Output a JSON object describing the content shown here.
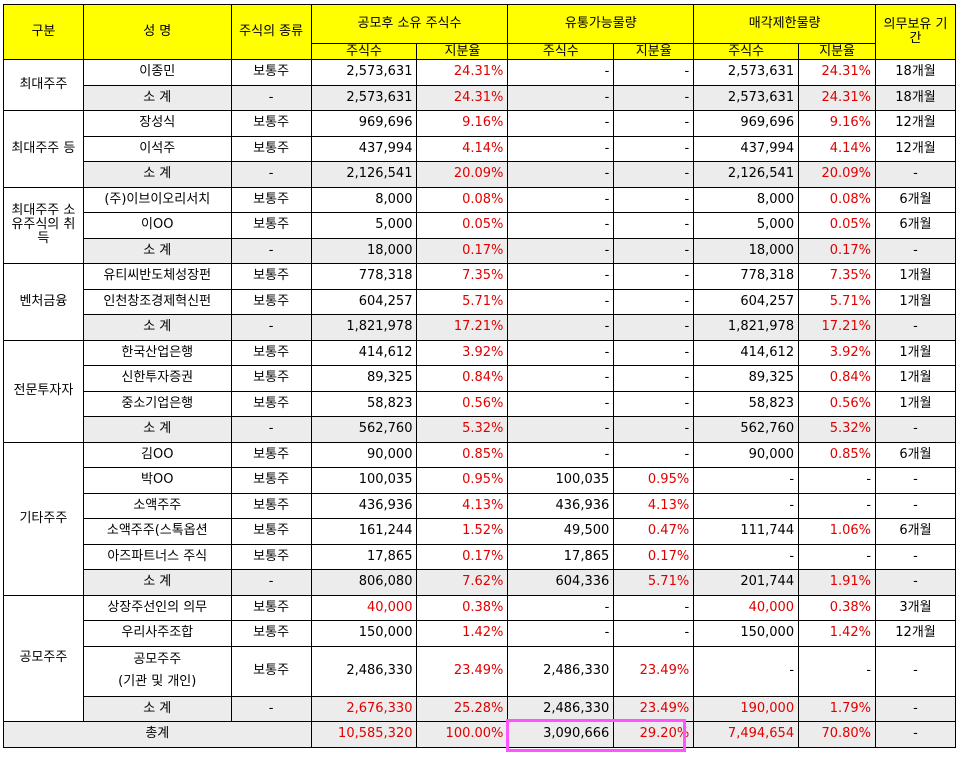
{
  "headers": {
    "gubun": "구분",
    "name": "성 명",
    "kind": "주식의 종류",
    "own": "공모후 소유 주식수",
    "flow": "유통가능물량",
    "lock": "매각제한물량",
    "duty": "의무보유 기간",
    "shares": "주식수",
    "ratio": "지분율"
  },
  "groups": [
    {
      "label": "최대주주",
      "rows": [
        {
          "name": "이종민",
          "kind": "보통주",
          "own": "2,573,631",
          "ownPct": "24.31%",
          "flow": "-",
          "flowPct": "-",
          "lock": "2,573,631",
          "lockPct": "24.31%",
          "period": "18개월"
        },
        {
          "name": "소 계",
          "kind": "-",
          "own": "2,573,631",
          "ownPct": "24.31%",
          "flow": "-",
          "flowPct": "-",
          "lock": "2,573,631",
          "lockPct": "24.31%",
          "period": "18개월",
          "sub": true
        }
      ]
    },
    {
      "label": "최대주주 등",
      "rows": [
        {
          "name": "장성식",
          "kind": "보통주",
          "own": "969,696",
          "ownPct": "9.16%",
          "flow": "-",
          "flowPct": "-",
          "lock": "969,696",
          "lockPct": "9.16%",
          "period": "12개월"
        },
        {
          "name": "이석주",
          "kind": "보통주",
          "own": "437,994",
          "ownPct": "4.14%",
          "flow": "-",
          "flowPct": "-",
          "lock": "437,994",
          "lockPct": "4.14%",
          "period": "12개월"
        },
        {
          "name": "소 계",
          "kind": "-",
          "own": "2,126,541",
          "ownPct": "20.09%",
          "flow": "-",
          "flowPct": "-",
          "lock": "2,126,541",
          "lockPct": "20.09%",
          "period": "-",
          "sub": true
        }
      ]
    },
    {
      "label": "최대주주 소유주식의 취득",
      "rows": [
        {
          "name": "(주)이브이오리서치",
          "kind": "보통주",
          "own": "8,000",
          "ownPct": "0.08%",
          "flow": "-",
          "flowPct": "-",
          "lock": "8,000",
          "lockPct": "0.08%",
          "period": "6개월"
        },
        {
          "name": "이OO",
          "kind": "보통주",
          "own": "5,000",
          "ownPct": "0.05%",
          "flow": "-",
          "flowPct": "-",
          "lock": "5,000",
          "lockPct": "0.05%",
          "period": "6개월"
        },
        {
          "name": "소 계",
          "kind": "-",
          "own": "18,000",
          "ownPct": "0.17%",
          "flow": "-",
          "flowPct": "-",
          "lock": "18,000",
          "lockPct": "0.17%",
          "period": "-",
          "sub": true
        }
      ]
    },
    {
      "label": "벤처금융",
      "rows": [
        {
          "name": "유티씨반도체성장펀",
          "kind": "보통주",
          "own": "778,318",
          "ownPct": "7.35%",
          "flow": "-",
          "flowPct": "-",
          "lock": "778,318",
          "lockPct": "7.35%",
          "period": "1개월"
        },
        {
          "name": "인천창조경제혁신펀",
          "kind": "보통주",
          "own": "604,257",
          "ownPct": "5.71%",
          "flow": "-",
          "flowPct": "-",
          "lock": "604,257",
          "lockPct": "5.71%",
          "period": "1개월"
        },
        {
          "name": "소 계",
          "kind": "-",
          "own": "1,821,978",
          "ownPct": "17.21%",
          "flow": "-",
          "flowPct": "-",
          "lock": "1,821,978",
          "lockPct": "17.21%",
          "period": "-",
          "sub": true
        }
      ]
    },
    {
      "label": "전문투자자",
      "rows": [
        {
          "name": "한국산업은행",
          "kind": "보통주",
          "own": "414,612",
          "ownPct": "3.92%",
          "flow": "-",
          "flowPct": "-",
          "lock": "414,612",
          "lockPct": "3.92%",
          "period": "1개월"
        },
        {
          "name": "신한투자증권",
          "kind": "보통주",
          "own": "89,325",
          "ownPct": "0.84%",
          "flow": "-",
          "flowPct": "-",
          "lock": "89,325",
          "lockPct": "0.84%",
          "period": "1개월"
        },
        {
          "name": "중소기업은행",
          "kind": "보통주",
          "own": "58,823",
          "ownPct": "0.56%",
          "flow": "-",
          "flowPct": "-",
          "lock": "58,823",
          "lockPct": "0.56%",
          "period": "1개월"
        },
        {
          "name": "소 계",
          "kind": "-",
          "own": "562,760",
          "ownPct": "5.32%",
          "flow": "-",
          "flowPct": "-",
          "lock": "562,760",
          "lockPct": "5.32%",
          "period": "-",
          "sub": true
        }
      ]
    },
    {
      "label": "기타주주",
      "rows": [
        {
          "name": "김OO",
          "kind": "보통주",
          "own": "90,000",
          "ownPct": "0.85%",
          "flow": "-",
          "flowPct": "-",
          "lock": "90,000",
          "lockPct": "0.85%",
          "period": "6개월"
        },
        {
          "name": "박OO",
          "kind": "보통주",
          "own": "100,035",
          "ownPct": "0.95%",
          "flow": "100,035",
          "flowPct": "0.95%",
          "lock": "-",
          "lockPct": "-",
          "period": "-"
        },
        {
          "name": "소액주주",
          "kind": "보통주",
          "own": "436,936",
          "ownPct": "4.13%",
          "flow": "436,936",
          "flowPct": "4.13%",
          "lock": "-",
          "lockPct": "-",
          "period": "-"
        },
        {
          "name": "소액주주(스톡옵션",
          "kind": "보통주",
          "own": "161,244",
          "ownPct": "1.52%",
          "flow": "49,500",
          "flowPct": "0.47%",
          "lock": "111,744",
          "lockPct": "1.06%",
          "period": "6개월"
        },
        {
          "name": "아즈파트너스 주식",
          "kind": "보통주",
          "own": "17,865",
          "ownPct": "0.17%",
          "flow": "17,865",
          "flowPct": "0.17%",
          "lock": "-",
          "lockPct": "-",
          "period": "-"
        },
        {
          "name": "소 계",
          "kind": "-",
          "own": "806,080",
          "ownPct": "7.62%",
          "flow": "604,336",
          "flowPct": "5.71%",
          "lock": "201,744",
          "lockPct": "1.91%",
          "period": "-",
          "sub": true
        }
      ]
    },
    {
      "label": "공모주주",
      "rows": [
        {
          "name": "상장주선인의 의무",
          "kind": "보통주",
          "own": "40,000",
          "ownRed": true,
          "ownPct": "0.38%",
          "flow": "-",
          "flowPct": "-",
          "lock": "40,000",
          "lockRed": true,
          "lockPct": "0.38%",
          "period": "3개월"
        },
        {
          "name": "우리사주조합",
          "kind": "보통주",
          "own": "150,000",
          "ownPct": "1.42%",
          "flow": "-",
          "flowPct": "-",
          "lock": "150,000",
          "lockPct": "1.42%",
          "period": "12개월"
        },
        {
          "name": "공모주주\n(기관 및 개인)",
          "kind": "보통주",
          "own": "2,486,330",
          "ownPct": "23.49%",
          "flow": "2,486,330",
          "flowPct": "23.49%",
          "lock": "-",
          "lockPct": "-",
          "period": "-",
          "big": true
        },
        {
          "name": "소 계",
          "kind": "-",
          "own": "2,676,330",
          "ownRed": true,
          "ownPct": "25.28%",
          "flow": "2,486,330",
          "flowPct": "23.49%",
          "lock": "190,000",
          "lockRed": true,
          "lockPct": "1.79%",
          "period": "-",
          "sub": true
        }
      ]
    }
  ],
  "total": {
    "label": "총계",
    "own": "10,585,320",
    "ownPct": "100.00%",
    "flow": "3,090,666",
    "flowPct": "29.20%",
    "lock": "7,494,654",
    "lockPct": "70.80%",
    "period": "-"
  },
  "colors": {
    "header": "#ffff00",
    "red": "#e00000",
    "subtotal": "#ececec",
    "highlight": "#ff55ff"
  }
}
